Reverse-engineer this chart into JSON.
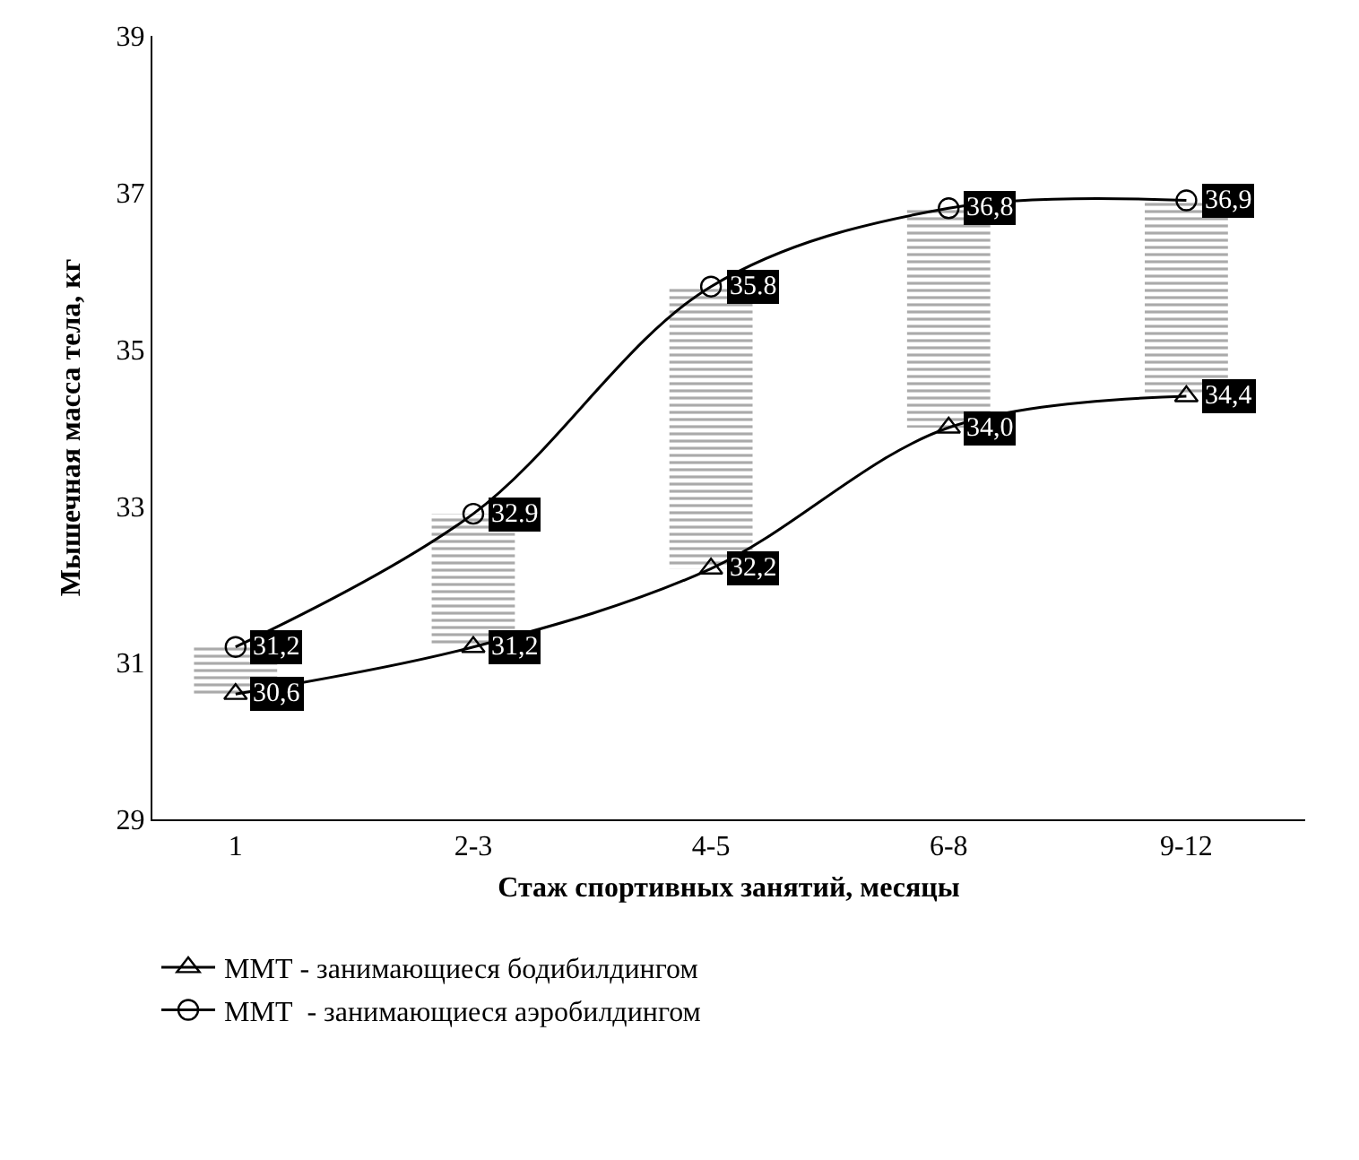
{
  "chart_data": {
    "type": "line",
    "xlabel": "Стаж спортивных занятий, месяцы",
    "ylabel": "Мышечная масса тела, кг",
    "categories": [
      "1",
      "2-3",
      "4-5",
      "6-8",
      "9-12"
    ],
    "ylim": [
      29,
      39
    ],
    "yticks": [
      29,
      31,
      33,
      35,
      37,
      39
    ],
    "legend": "bottom",
    "line_style": "solid",
    "series": [
      {
        "type": "bar",
        "color": "#555555",
        "base": [
          30.6,
          31.2,
          32.2,
          34.0,
          34.4
        ],
        "values": [
          0.6,
          1.7,
          3.6,
          2.8,
          2.5
        ]
      },
      {
        "name": "ММТ - занимающиеся бодибилдингом",
        "color": "#000000",
        "marker": "triangle",
        "values": [
          30.6,
          31.2,
          32.2,
          34.0,
          34.4
        ],
        "value_labels": [
          "30,6",
          "31,2",
          "32,2",
          "34,0",
          "34,4"
        ]
      },
      {
        "name": "ММТ  - занимающиеся аэробилдингом",
        "color": "#000000",
        "marker": "circle",
        "values": [
          31.2,
          32.9,
          35.8,
          36.8,
          36.9
        ],
        "value_labels": [
          "31,2",
          "32.9",
          "35.8",
          "36,8",
          "36,9"
        ]
      }
    ]
  }
}
